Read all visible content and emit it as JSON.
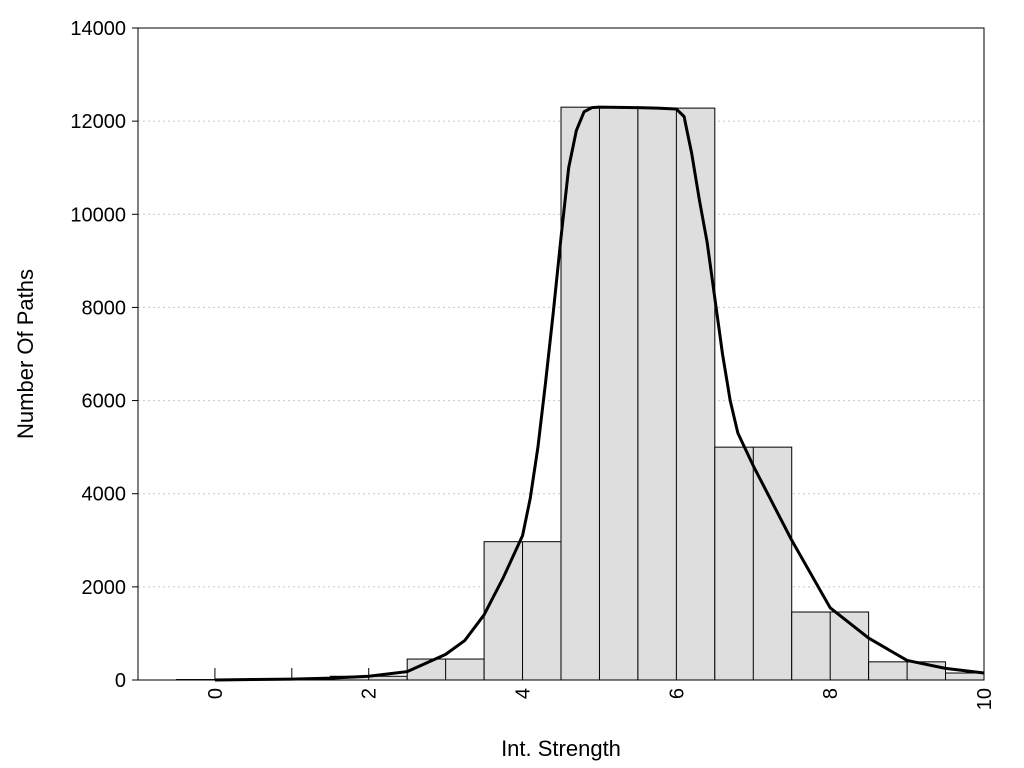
{
  "chart_data": {
    "type": "bar",
    "xlabel": "Int. Strength",
    "ylabel": "Number Of Paths",
    "xlim": [
      -1,
      10
    ],
    "ylim": [
      0,
      14000
    ],
    "x_ticks": [
      0,
      2,
      4,
      6,
      8,
      10
    ],
    "y_ticks": [
      0,
      2000,
      4000,
      6000,
      8000,
      10000,
      12000,
      14000
    ],
    "grid": true,
    "legend": "none",
    "bins": {
      "x": [
        0,
        1,
        2,
        3,
        4,
        5,
        6,
        7,
        8,
        9,
        10
      ],
      "values": [
        10,
        30,
        80,
        450,
        2970,
        12300,
        12280,
        5000,
        1460,
        390,
        150
      ]
    },
    "curve": {
      "x": [
        0,
        0.5,
        1,
        1.5,
        2,
        2.5,
        3,
        3.25,
        3.5,
        3.75,
        4,
        4.1,
        4.2,
        4.3,
        4.4,
        4.5,
        4.6,
        4.7,
        4.8,
        4.9,
        5,
        5.25,
        5.5,
        5.75,
        6,
        6.1,
        6.2,
        6.3,
        6.4,
        6.5,
        6.6,
        6.7,
        6.8,
        6.9,
        7,
        7.5,
        8,
        8.5,
        9,
        9.5,
        10
      ],
      "y": [
        0,
        10,
        20,
        40,
        80,
        180,
        550,
        850,
        1400,
        2200,
        3100,
        3900,
        5000,
        6400,
        7900,
        9500,
        11000,
        11800,
        12200,
        12290,
        12300,
        12295,
        12290,
        12280,
        12260,
        12100,
        11300,
        10300,
        9400,
        8200,
        7000,
        6000,
        5300,
        4950,
        4600,
        3000,
        1550,
        900,
        420,
        250,
        150
      ]
    }
  }
}
